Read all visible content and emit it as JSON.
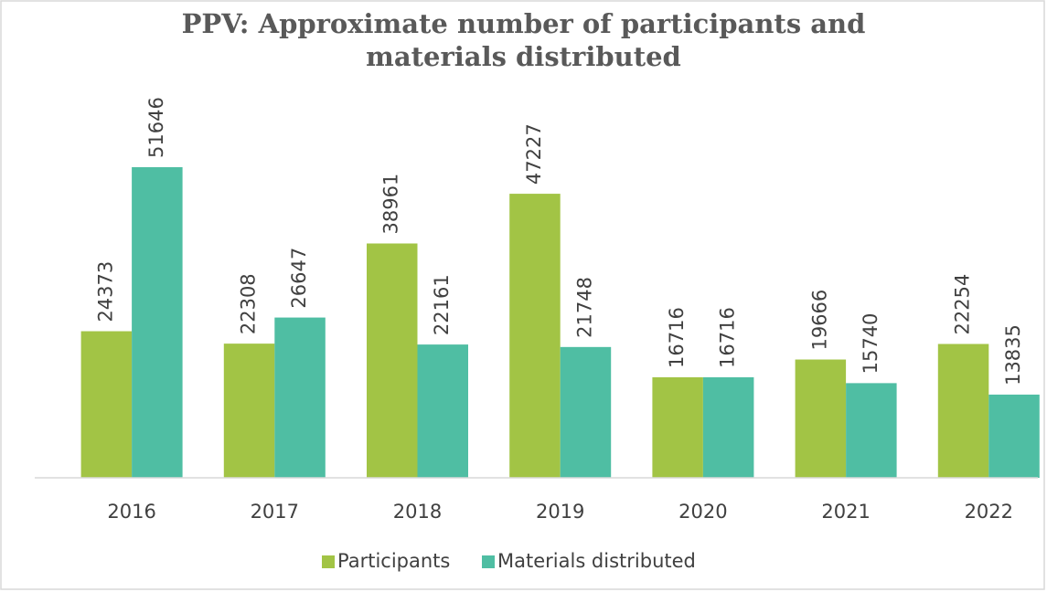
{
  "chart_data": {
    "type": "bar",
    "title": "PPV: Approximate number of participants and materials distributed",
    "categories": [
      "2016",
      "2017",
      "2018",
      "2019",
      "2020",
      "2021",
      "2022"
    ],
    "series": [
      {
        "name": "Participants",
        "color": "#a2c445",
        "values": [
          24373,
          22308,
          38961,
          47227,
          16716,
          19666,
          22254
        ]
      },
      {
        "name": "Materials distributed",
        "color": "#4fbea3",
        "values": [
          51646,
          26647,
          22161,
          21748,
          16716,
          15740,
          13835
        ]
      }
    ],
    "ylim": [
      0,
      60000
    ],
    "legend": "bottom"
  }
}
